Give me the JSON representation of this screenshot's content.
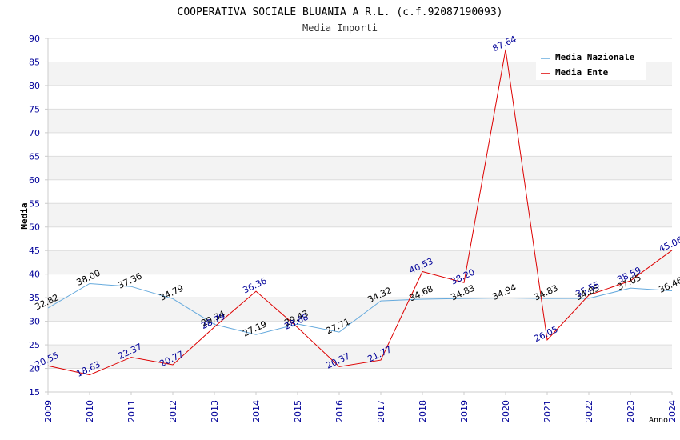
{
  "chart_data": {
    "type": "line",
    "title": "COOPERATIVA SOCIALE BLUANIA A R.L. (c.f.92087190093)",
    "subtitle": "Media Importi",
    "xlabel": "Anno",
    "ylabel": "Media",
    "ylim": [
      15,
      90
    ],
    "yticks": [
      15,
      20,
      25,
      30,
      35,
      40,
      45,
      50,
      55,
      60,
      65,
      70,
      75,
      80,
      85,
      90
    ],
    "x": [
      "2009",
      "2010",
      "2011",
      "2012",
      "2013",
      "2014",
      "2015",
      "2016",
      "2017",
      "2018",
      "2019",
      "2020",
      "2021",
      "2022",
      "2023",
      "2024"
    ],
    "grid": true,
    "legend_position": "top-right",
    "series": [
      {
        "name": "Media Nazionale",
        "color": "#66aadd",
        "label_color": "#000000",
        "values": [
          32.82,
          38.0,
          37.36,
          34.79,
          29.34,
          27.19,
          29.43,
          27.71,
          34.32,
          34.68,
          34.83,
          34.94,
          34.83,
          34.85,
          37.05,
          36.46
        ],
        "labels": [
          "32.82",
          "38.00",
          "37.36",
          "34.79",
          "29.34",
          "27.19",
          "29.43",
          "27.71",
          "34.32",
          "34.68",
          "34.83",
          "34.94",
          "34.83",
          "34.85",
          "37.05",
          "36.46"
        ]
      },
      {
        "name": "Media Ente",
        "color": "#dd0000",
        "label_color": "#000099",
        "values": [
          20.55,
          18.63,
          22.37,
          20.77,
          28.79,
          36.36,
          28.68,
          20.37,
          21.77,
          40.53,
          38.2,
          87.64,
          26.05,
          35.55,
          38.59,
          45.06
        ],
        "labels": [
          "20.55",
          "18.63",
          "22.37",
          "20.77",
          "28.79",
          "36.36",
          "28.68",
          "20.37",
          "21.77",
          "40.53",
          "38.20",
          "87.64",
          "26.05",
          "35.55",
          "38.59",
          "45.06"
        ]
      }
    ]
  }
}
